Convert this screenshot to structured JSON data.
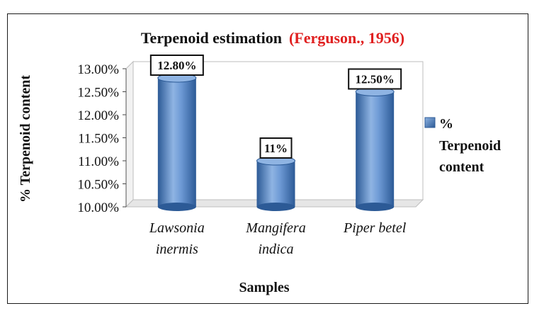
{
  "chart_data": {
    "type": "bar",
    "title": "Terpenoid estimation",
    "title_citation": "(Ferguson., 1956)",
    "xlabel": "Samples",
    "ylabel": "% Terpenoid content",
    "categories": [
      [
        "Lawsonia",
        "inermis"
      ],
      [
        "Mangifera",
        "indica"
      ],
      [
        "Piper betel"
      ]
    ],
    "series": [
      {
        "name": "% Terpenoid content",
        "values": [
          12.8,
          11.0,
          12.5
        ],
        "data_labels": [
          "12.80%",
          "11%",
          "12.50%"
        ]
      }
    ],
    "ylim": [
      10.0,
      13.0
    ],
    "yticks": [
      "10.00%",
      "10.50%",
      "11.00%",
      "11.50%",
      "12.00%",
      "12.50%",
      "13.00%"
    ],
    "legend": {
      "position": "right",
      "lines": [
        "%",
        "Terpenoid",
        "content"
      ]
    },
    "grid": false,
    "colors": {
      "bar": "#4f81bd",
      "bar_dark": "#2c5a96",
      "bar_light": "#8fb4e3",
      "citation": "#e02020"
    }
  }
}
